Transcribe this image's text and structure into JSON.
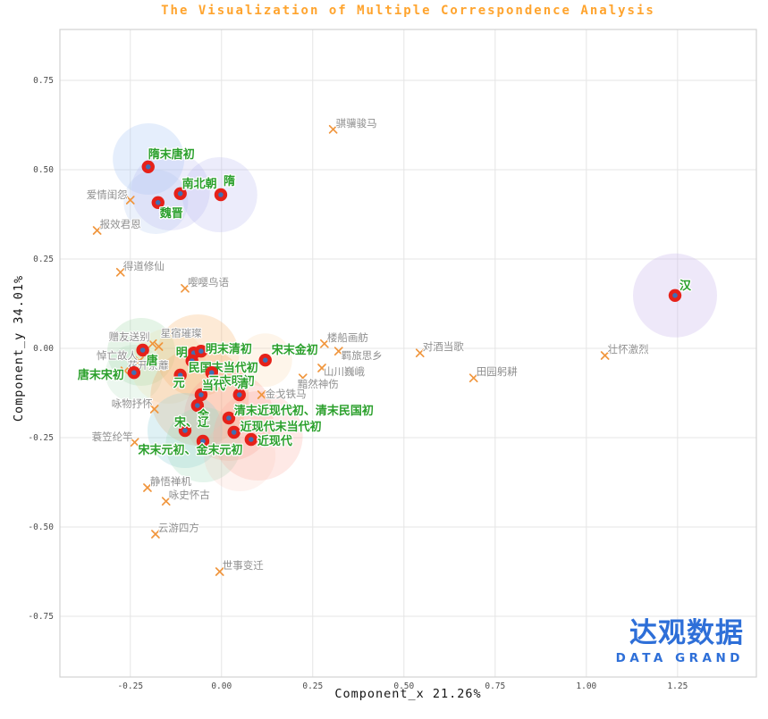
{
  "title": "The Visualization of Multiple Correspondence Analysis",
  "logo": {
    "cn": "达观数据",
    "en": "DATA GRAND",
    "color": "#2e6fd8"
  },
  "chart_data": {
    "type": "scatter",
    "title": "The Visualization of Multiple Correspondence Analysis",
    "xlabel": "Component_x 21.26%",
    "ylabel": "Component_y 34.01%",
    "xlim": [
      -0.443,
      1.466
    ],
    "ylim": [
      -0.92,
      0.8925
    ],
    "x_ticks": [
      -0.25,
      0.0,
      0.25,
      0.5,
      0.75,
      1.0,
      1.25
    ],
    "y_ticks": [
      0.75,
      0.5,
      0.25,
      0.0,
      -0.25,
      -0.5,
      -0.75
    ],
    "grid": true,
    "colors": {
      "title": "#ffa42e",
      "dynasty_dot": "#e62119",
      "dynasty_dot_center": "#3f6fb4",
      "dynasty_label": "#2ba02c",
      "theme_marker": "#f0953c",
      "theme_label": "#8f8f8f"
    },
    "series": [
      {
        "name": "poem_themes",
        "marker": "x",
        "color": "#f0953c",
        "points": [
          {
            "label": "爱情闺怨",
            "x": -0.25,
            "y": 0.415,
            "dx": -3,
            "dy": -2,
            "anchor": "end"
          },
          {
            "label": "报效君恩",
            "x": -0.341,
            "y": 0.33,
            "dx": 3,
            "dy": -3,
            "anchor": "start"
          },
          {
            "label": "得道修仙",
            "x": -0.277,
            "y": 0.213,
            "dx": 3,
            "dy": -3,
            "anchor": "start"
          },
          {
            "label": "嘤嘤鸟语",
            "x": -0.1,
            "y": 0.168,
            "dx": 3,
            "dy": -3,
            "anchor": "start"
          },
          {
            "label": "骐骥骏马",
            "x": 0.306,
            "y": 0.613,
            "dx": 3,
            "dy": -3,
            "anchor": "start"
          },
          {
            "label": "赠友送别",
            "x": -0.189,
            "y": 0.013,
            "dx": -3,
            "dy": -4,
            "anchor": "end"
          },
          {
            "label": "星宿璀璨",
            "x": -0.172,
            "y": 0.005,
            "dx": 2,
            "dy": -11,
            "anchor": "start"
          },
          {
            "label": "悼亡故人",
            "x": -0.225,
            "y": -0.035,
            "dx": -2,
            "dy": -2,
            "anchor": "end"
          },
          {
            "label": "花开荼蘼",
            "x": -0.265,
            "y": -0.063,
            "dx": 3,
            "dy": -2,
            "anchor": "start"
          },
          {
            "label": "咏物抒怀",
            "x": -0.184,
            "y": -0.17,
            "dx": -2,
            "dy": -2,
            "anchor": "end"
          },
          {
            "label": "蓑笠纶竿",
            "x": -0.238,
            "y": -0.263,
            "dx": -2,
            "dy": -2,
            "anchor": "end"
          },
          {
            "label": "静悟禅机",
            "x": -0.203,
            "y": -0.39,
            "dx": 3,
            "dy": -3,
            "anchor": "start"
          },
          {
            "label": "咏史怀古",
            "x": -0.152,
            "y": -0.428,
            "dx": 3,
            "dy": -3,
            "anchor": "start"
          },
          {
            "label": "云游四方",
            "x": -0.181,
            "y": -0.52,
            "dx": 3,
            "dy": -3,
            "anchor": "start"
          },
          {
            "label": "世事变迁",
            "x": -0.005,
            "y": -0.625,
            "dx": 3,
            "dy": -3,
            "anchor": "start"
          },
          {
            "label": "楼船画舫",
            "x": 0.282,
            "y": 0.013,
            "dx": 3,
            "dy": -3,
            "anchor": "start"
          },
          {
            "label": "羁旅思乡",
            "x": 0.321,
            "y": -0.008,
            "dx": 3,
            "dy": 9,
            "anchor": "start"
          },
          {
            "label": "山川巍峨",
            "x": 0.275,
            "y": -0.055,
            "dx": 2,
            "dy": 8,
            "anchor": "start"
          },
          {
            "label": "黯然神伤",
            "x": 0.223,
            "y": -0.083,
            "dx": -6,
            "dy": 11,
            "anchor": "start"
          },
          {
            "label": "金戈铁马",
            "x": 0.11,
            "y": -0.13,
            "dx": 4,
            "dy": 3,
            "anchor": "start"
          },
          {
            "label": "对酒当歌",
            "x": 0.544,
            "y": -0.013,
            "dx": 3,
            "dy": -3,
            "anchor": "start"
          },
          {
            "label": "田园躬耕",
            "x": 0.691,
            "y": -0.083,
            "dx": 3,
            "dy": -3,
            "anchor": "start"
          },
          {
            "label": "壮怀激烈",
            "x": 1.051,
            "y": -0.02,
            "dx": 3,
            "dy": -3,
            "anchor": "start"
          }
        ]
      },
      {
        "name": "dynasties",
        "marker": "circle",
        "color": "#e62119",
        "center_color": "#3f6fb4",
        "points": [
          {
            "label": "隋末唐初",
            "x": -0.201,
            "y": 0.508,
            "dx": 0,
            "dy": -10,
            "anchor": "start"
          },
          {
            "label": "魏晋",
            "x": -0.174,
            "y": 0.408,
            "dx": 2,
            "dy": 16,
            "anchor": "start"
          },
          {
            "label": "南北朝",
            "x": -0.113,
            "y": 0.433,
            "dx": 2,
            "dy": -7,
            "anchor": "start"
          },
          {
            "label": "隋",
            "x": -0.002,
            "y": 0.43,
            "dx": 3,
            "dy": -11,
            "anchor": "start"
          },
          {
            "label": "汉",
            "x": 1.243,
            "y": 0.148,
            "dx": 5,
            "dy": -7,
            "anchor": "start"
          },
          {
            "label": "唐",
            "x": -0.216,
            "y": -0.005,
            "dx": 4,
            "dy": 16,
            "anchor": "start"
          },
          {
            "label": "唐末宋初",
            "x": -0.24,
            "y": -0.068,
            "dx": -11,
            "dy": 7,
            "anchor": "end"
          },
          {
            "label": "明",
            "x": -0.076,
            "y": -0.013,
            "dx": -7,
            "dy": 4,
            "anchor": "end"
          },
          {
            "label": "明末清初",
            "x": -0.056,
            "y": -0.008,
            "dx": 5,
            "dy": 2,
            "anchor": "start"
          },
          {
            "label": "民国末当代初",
            "x": -0.081,
            "y": -0.035,
            "dx": -4,
            "dy": 12,
            "anchor": "start"
          },
          {
            "label": "元",
            "x": -0.113,
            "y": -0.075,
            "dx": -8,
            "dy": 13,
            "anchor": "start"
          },
          {
            "label": "元末明初",
            "x": -0.027,
            "y": -0.068,
            "dx": -4,
            "dy": 14,
            "anchor": "start"
          },
          {
            "label": "宋末金初",
            "x": 0.12,
            "y": -0.033,
            "dx": 7,
            "dy": -7,
            "anchor": "start"
          },
          {
            "label": "当代",
            "x": -0.056,
            "y": -0.13,
            "dx": 1,
            "dy": -6,
            "anchor": "start"
          },
          {
            "label": "清",
            "x": 0.049,
            "y": -0.13,
            "dx": 4,
            "dy": -8,
            "anchor": "middle"
          },
          {
            "label": "金",
            "x": -0.066,
            "y": -0.16,
            "dx": 0,
            "dy": 15,
            "anchor": "start"
          },
          {
            "label": "清末近现代初、清末民国初",
            "x": 0.02,
            "y": -0.195,
            "dx": 6,
            "dy": -4,
            "anchor": "start"
          },
          {
            "label": "近现代末当代初",
            "x": 0.034,
            "y": -0.235,
            "dx": 7,
            "dy": -2,
            "anchor": "start"
          },
          {
            "label": "宋、辽",
            "x": -0.1,
            "y": -0.23,
            "dx": -12,
            "dy": -5,
            "anchor": "start"
          },
          {
            "label": "近现代",
            "x": 0.081,
            "y": -0.255,
            "dx": 7,
            "dy": 6,
            "anchor": "start"
          },
          {
            "label": "宋末元初、金末元初",
            "x": -0.051,
            "y": -0.26,
            "dx": -14,
            "dy": 14,
            "anchor": "middle"
          }
        ]
      }
    ],
    "bubbles": [
      {
        "x": -0.2,
        "y": 0.53,
        "r": 40,
        "color": "rgba(170,200,245,0.30)"
      },
      {
        "x": -0.18,
        "y": 0.41,
        "r": 36,
        "color": "rgba(175,200,240,0.25)"
      },
      {
        "x": -0.14,
        "y": 0.44,
        "r": 44,
        "color": "rgba(185,182,240,0.25)"
      },
      {
        "x": -0.005,
        "y": 0.43,
        "r": 42,
        "color": "rgba(180,178,240,0.25)"
      },
      {
        "x": 1.243,
        "y": 0.148,
        "r": 47,
        "color": "rgba(202,182,235,0.32)"
      },
      {
        "x": -0.22,
        "y": -0.01,
        "r": 38,
        "color": "rgba(160,215,170,0.28)"
      },
      {
        "x": -0.24,
        "y": -0.07,
        "r": 32,
        "color": "rgba(170,220,180,0.22)"
      },
      {
        "x": -0.145,
        "y": -0.05,
        "r": 42,
        "color": "rgba(235,225,170,0.22)"
      },
      {
        "x": -0.065,
        "y": -0.02,
        "r": 46,
        "color": "rgba(250,185,120,0.30)"
      },
      {
        "x": 0.12,
        "y": -0.033,
        "r": 30,
        "color": "rgba(250,210,160,0.22)"
      },
      {
        "x": -0.06,
        "y": -0.135,
        "r": 55,
        "color": "rgba(247,175,115,0.32)"
      },
      {
        "x": 0.02,
        "y": -0.19,
        "r": 50,
        "color": "rgba(250,160,148,0.28)"
      },
      {
        "x": -0.1,
        "y": -0.23,
        "r": 42,
        "color": "rgba(150,210,220,0.30)"
      },
      {
        "x": -0.05,
        "y": -0.27,
        "r": 42,
        "color": "rgba(160,220,185,0.28)"
      },
      {
        "x": 0.1,
        "y": -0.245,
        "r": 50,
        "color": "rgba(250,168,155,0.25)"
      },
      {
        "x": 0.05,
        "y": -0.3,
        "r": 40,
        "color": "rgba(250,190,170,0.18)"
      }
    ]
  }
}
